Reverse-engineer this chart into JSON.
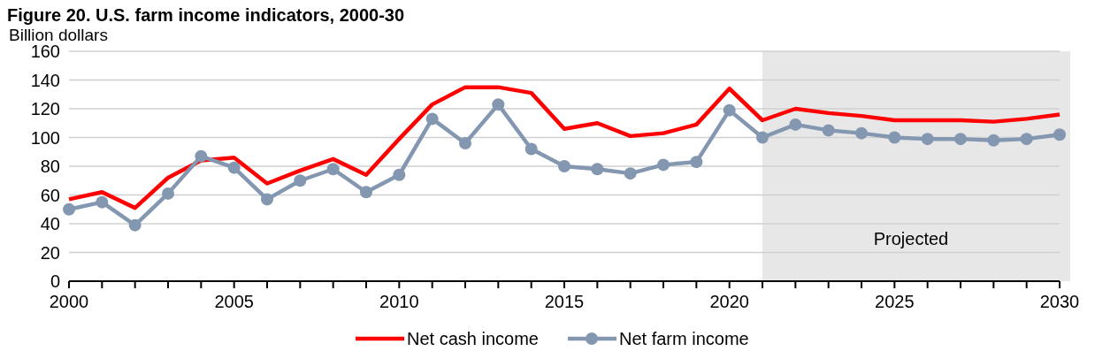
{
  "chart_data": {
    "type": "line",
    "title": "Figure 20. U.S. farm income indicators, 2000-30",
    "ylabel": "Billion dollars",
    "x": [
      2000,
      2001,
      2002,
      2003,
      2004,
      2005,
      2006,
      2007,
      2008,
      2009,
      2010,
      2011,
      2012,
      2013,
      2014,
      2015,
      2016,
      2017,
      2018,
      2019,
      2020,
      2021,
      2022,
      2023,
      2024,
      2025,
      2026,
      2027,
      2028,
      2029,
      2030
    ],
    "series": [
      {
        "name": "Net cash income",
        "color": "#ff0000",
        "marker": "none",
        "values": [
          57,
          62,
          51,
          72,
          84,
          86,
          68,
          77,
          85,
          74,
          99,
          123,
          135,
          135,
          131,
          106,
          110,
          101,
          103,
          109,
          134,
          112,
          120,
          117,
          115,
          112,
          112,
          112,
          111,
          113,
          116
        ]
      },
      {
        "name": "Net farm income",
        "color": "#8497b0",
        "marker": "circle",
        "values": [
          50,
          55,
          39,
          61,
          87,
          79,
          57,
          70,
          78,
          62,
          74,
          113,
          96,
          123,
          92,
          80,
          78,
          75,
          81,
          83,
          119,
          100,
          109,
          105,
          103,
          100,
          99,
          99,
          98,
          99,
          102
        ]
      }
    ],
    "xlim": [
      2000,
      2030
    ],
    "xticks": [
      2000,
      2005,
      2010,
      2015,
      2020,
      2025,
      2030
    ],
    "ylim": [
      0,
      160
    ],
    "yticks": [
      0,
      20,
      40,
      60,
      80,
      100,
      120,
      140,
      160
    ],
    "bands": [
      {
        "axis": "x",
        "from": 2021,
        "to": 2030,
        "label": "Projected",
        "color": "#e7e7e7"
      }
    ],
    "grid": "y",
    "legend": "bottom"
  }
}
